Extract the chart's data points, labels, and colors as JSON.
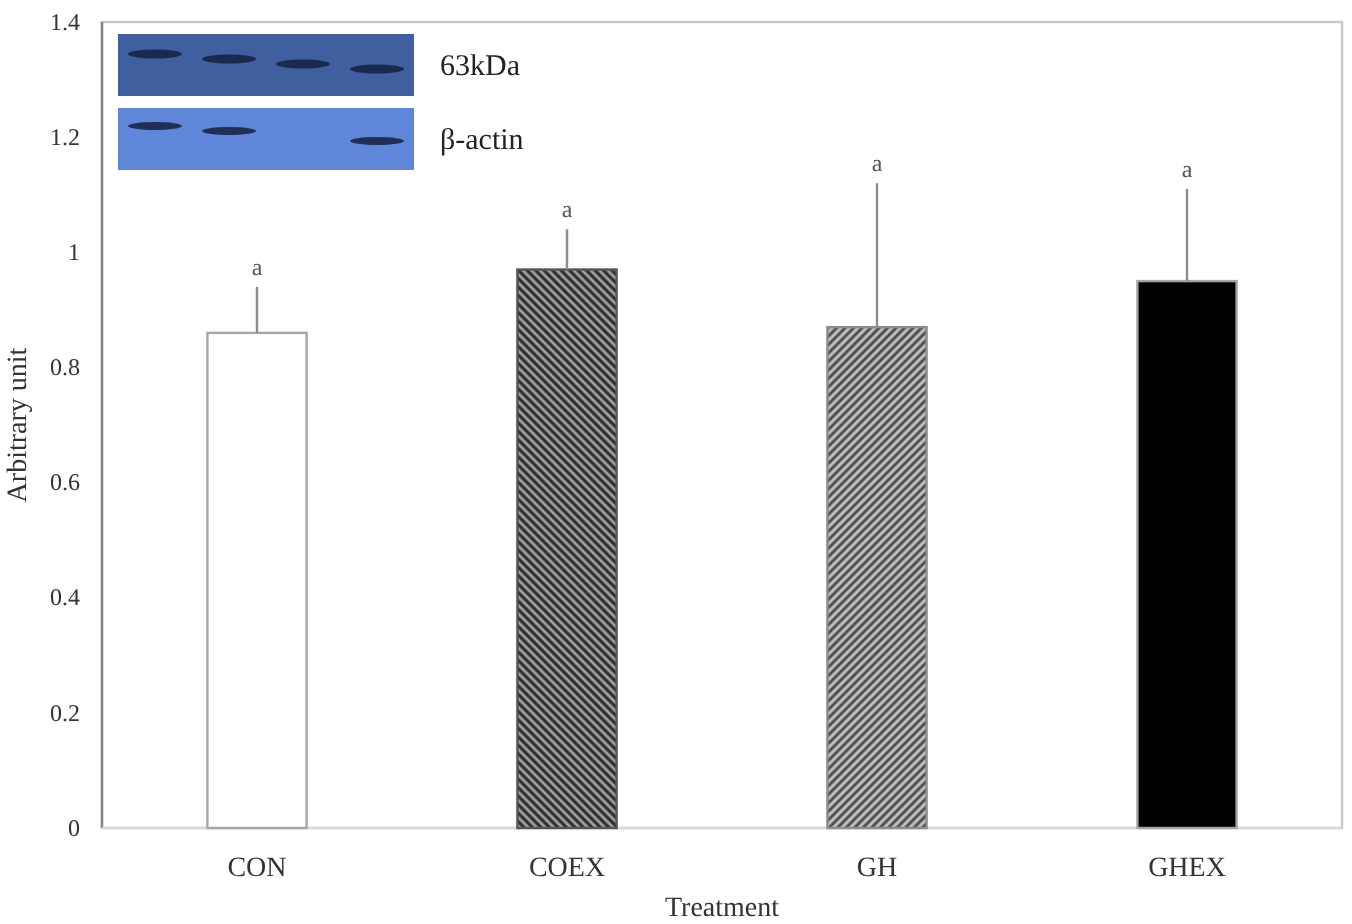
{
  "chart_data": {
    "type": "bar",
    "xlabel": "Treatment",
    "ylabel": "Arbitrary unit",
    "categories": [
      "CON",
      "COEX",
      "GH",
      "GHEX"
    ],
    "values": [
      0.86,
      0.97,
      0.87,
      0.95
    ],
    "colors": [
      "#ffffff",
      "#555555",
      "#8c8c8c",
      "#000000"
    ],
    "errors": [
      [
        0.86,
        0.94
      ],
      [
        0.97,
        1.04
      ],
      [
        0.87,
        1.12
      ],
      [
        0.95,
        1.11
      ]
    ],
    "ylim": [
      0,
      1.4
    ],
    "yticks": [
      0,
      0.2,
      0.4,
      0.6,
      0.8,
      1,
      1.2,
      1.4
    ],
    "annotations": [
      "63kDa",
      "β-actin",
      "a",
      "a",
      "a",
      "a"
    ]
  }
}
